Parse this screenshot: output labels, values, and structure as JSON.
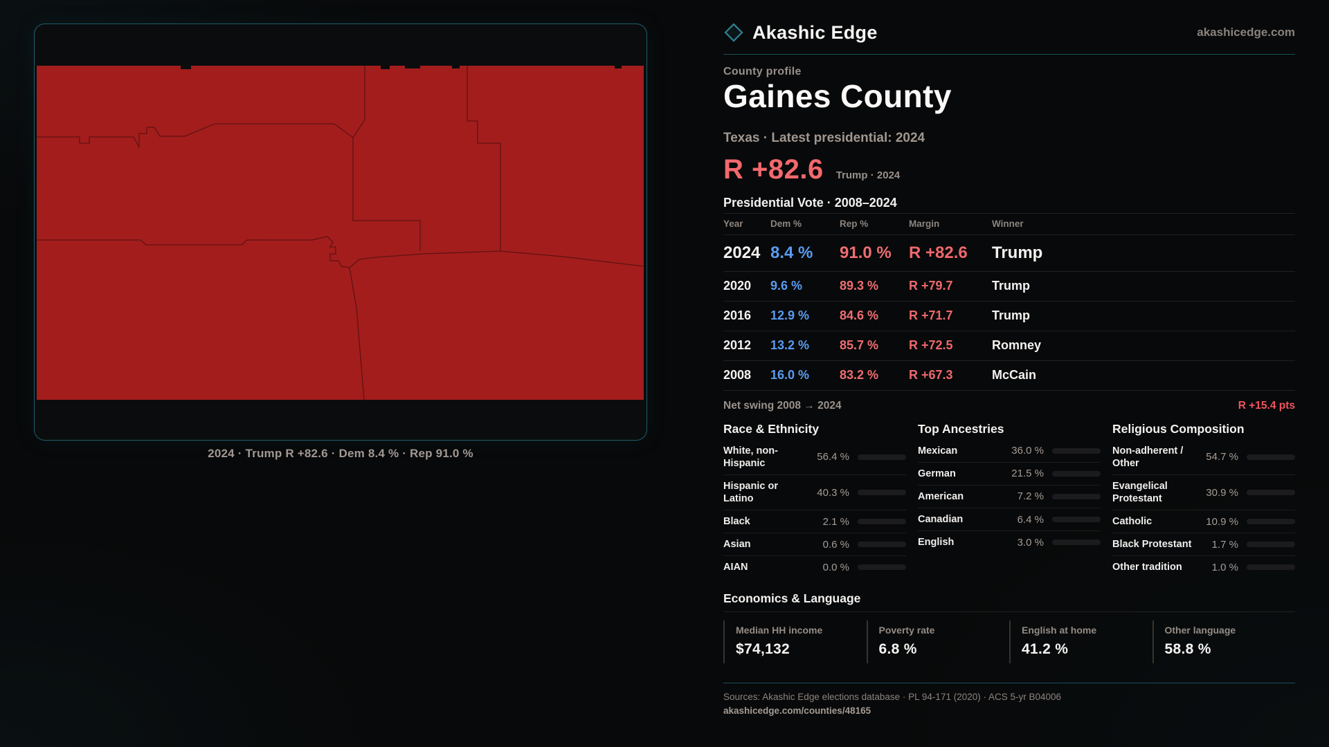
{
  "brand": {
    "name": "Akashic Edge",
    "site": "akashicedge.com"
  },
  "map": {
    "caption": "2024 · Trump R +82.6 · Dem 8.4 % · Rep 91.0 %",
    "fill_color": "#a31d1d"
  },
  "profile": {
    "kicker": "County profile",
    "title": "Gaines County",
    "subtitle": "Texas · Latest presidential: 2024",
    "headline_margin": "R +82.6",
    "headline_context": "Trump · 2024"
  },
  "vote_table": {
    "title": "Presidential Vote · 2008–2024",
    "columns": [
      "Year",
      "Dem %",
      "Rep %",
      "Margin",
      "Winner"
    ],
    "rows": [
      {
        "year": "2024",
        "dem": "8.4 %",
        "rep": "91.0 %",
        "margin": "R +82.6",
        "winner": "Trump"
      },
      {
        "year": "2020",
        "dem": "9.6 %",
        "rep": "89.3 %",
        "margin": "R +79.7",
        "winner": "Trump"
      },
      {
        "year": "2016",
        "dem": "12.9 %",
        "rep": "84.6 %",
        "margin": "R +71.7",
        "winner": "Trump"
      },
      {
        "year": "2012",
        "dem": "13.2 %",
        "rep": "85.7 %",
        "margin": "R +72.5",
        "winner": "Romney"
      },
      {
        "year": "2008",
        "dem": "16.0 %",
        "rep": "83.2 %",
        "margin": "R +67.3",
        "winner": "McCain"
      }
    ],
    "net_swing_label": "Net swing 2008 → 2024",
    "net_swing_value": "R +15.4 pts"
  },
  "race": {
    "title": "Race & Ethnicity",
    "items": [
      {
        "label": "White, non-Hispanic",
        "value": "56.4 %",
        "pct": 56.4,
        "color": "#90a5bf"
      },
      {
        "label": "Hispanic or Latino",
        "value": "40.3 %",
        "pct": 40.3,
        "color": "#eda41f"
      },
      {
        "label": "Black",
        "value": "2.1 %",
        "pct": 2.1,
        "color": "#8673f0"
      },
      {
        "label": "Asian",
        "value": "0.6 %",
        "pct": 0.6,
        "color": "#2fcb8e"
      },
      {
        "label": "AIAN",
        "value": "0.0 %",
        "pct": 0.0,
        "color": "#90a5bf"
      }
    ]
  },
  "ancestries": {
    "title": "Top Ancestries",
    "items": [
      {
        "label": "Mexican",
        "value": "36.0 %",
        "pct": 36.0,
        "color": "#eda41f"
      },
      {
        "label": "German",
        "value": "21.5 %",
        "pct": 21.5,
        "color": "#90a5bf"
      },
      {
        "label": "American",
        "value": "7.2 %",
        "pct": 7.2,
        "color": "#90a5bf"
      },
      {
        "label": "Canadian",
        "value": "6.4 %",
        "pct": 6.4,
        "color": "#90a5bf"
      },
      {
        "label": "English",
        "value": "3.0 %",
        "pct": 3.0,
        "color": "#b7c6d8"
      }
    ]
  },
  "religion": {
    "title": "Religious Composition",
    "items": [
      {
        "label": "Non-adherent / Other",
        "value": "54.7 %",
        "pct": 54.7,
        "color": "#7e95ad"
      },
      {
        "label": "Evangelical Protestant",
        "value": "30.9 %",
        "pct": 30.9,
        "color": "#e56970"
      },
      {
        "label": "Catholic",
        "value": "10.9 %",
        "pct": 10.9,
        "color": "#e8b33c"
      },
      {
        "label": "Black Protestant",
        "value": "1.7 %",
        "pct": 1.7,
        "color": "#aab4ea"
      },
      {
        "label": "Other tradition",
        "value": "1.0 %",
        "pct": 1.0,
        "color": "#bdbdbd"
      }
    ]
  },
  "economics": {
    "title": "Economics & Language",
    "stats": [
      {
        "label": "Median HH income",
        "value": "$74,132"
      },
      {
        "label": "Poverty rate",
        "value": "6.8 %"
      },
      {
        "label": "English at home",
        "value": "41.2 %"
      },
      {
        "label": "Other language",
        "value": "58.8 %"
      }
    ]
  },
  "footer": {
    "sources": "Sources: Akashic Edge elections database · PL 94-171 (2020) · ACS 5-yr B04006",
    "permalink": "akashicedge.com/counties/48165"
  }
}
